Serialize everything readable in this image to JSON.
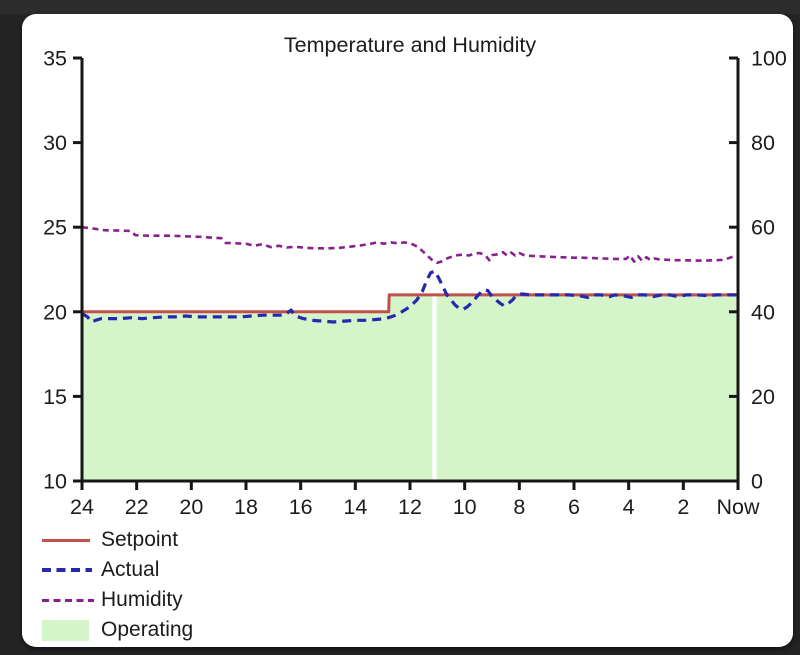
{
  "window": {
    "frame_color": "#232323",
    "card_color": "#ffffff",
    "text_color": "#1c1c1c",
    "axis_color": "#161616"
  },
  "chart_data": {
    "type": "line",
    "title": "Temperature and Humidity",
    "x_axis": {
      "unit": "hours ago",
      "direction": "oldest-left",
      "range": [
        24,
        0
      ],
      "tick_values": [
        24,
        22,
        20,
        18,
        16,
        14,
        12,
        10,
        8,
        6,
        4,
        2,
        0
      ],
      "tick_labels": [
        "24",
        "22",
        "20",
        "18",
        "16",
        "14",
        "12",
        "10",
        "8",
        "6",
        "4",
        "2",
        "Now"
      ]
    },
    "y_axis_left": {
      "measure": "temperature",
      "range": [
        10,
        35
      ],
      "ticks": [
        10,
        15,
        20,
        25,
        30,
        35
      ]
    },
    "y_axis_right": {
      "measure": "humidity",
      "range": [
        0,
        100
      ],
      "ticks": [
        0,
        20,
        40,
        60,
        80,
        100
      ]
    },
    "series": [
      {
        "name": "Setpoint",
        "axis": "left",
        "color": "#c0504a",
        "style": "solid",
        "width": 3,
        "points": [
          [
            24,
            20
          ],
          [
            12.78,
            20
          ],
          [
            12.76,
            21
          ],
          [
            0,
            21
          ]
        ]
      },
      {
        "name": "Actual",
        "axis": "left",
        "color": "#2828ae",
        "style": "dashed",
        "width": 3.2,
        "dash": "9 6",
        "points": [
          [
            24,
            19.9
          ],
          [
            23.8,
            19.7
          ],
          [
            23.65,
            19.4
          ],
          [
            23.5,
            19.5
          ],
          [
            23.3,
            19.6
          ],
          [
            23,
            19.6
          ],
          [
            22.6,
            19.6
          ],
          [
            22.2,
            19.65
          ],
          [
            21.8,
            19.6
          ],
          [
            21.4,
            19.65
          ],
          [
            21,
            19.7
          ],
          [
            20.6,
            19.7
          ],
          [
            20.2,
            19.75
          ],
          [
            19.8,
            19.7
          ],
          [
            19.4,
            19.7
          ],
          [
            19,
            19.7
          ],
          [
            18.6,
            19.7
          ],
          [
            18.2,
            19.7
          ],
          [
            17.8,
            19.75
          ],
          [
            17.4,
            19.8
          ],
          [
            17,
            19.8
          ],
          [
            16.6,
            19.8
          ],
          [
            16.35,
            20.1
          ],
          [
            16.2,
            19.75
          ],
          [
            15.9,
            19.6
          ],
          [
            15.6,
            19.5
          ],
          [
            15.2,
            19.45
          ],
          [
            14.8,
            19.4
          ],
          [
            14.4,
            19.45
          ],
          [
            14,
            19.5
          ],
          [
            13.6,
            19.5
          ],
          [
            13.2,
            19.55
          ],
          [
            12.9,
            19.6
          ],
          [
            12.6,
            19.75
          ],
          [
            12.3,
            20.0
          ],
          [
            12,
            20.3
          ],
          [
            11.75,
            20.7
          ],
          [
            11.55,
            21.2
          ],
          [
            11.4,
            21.8
          ],
          [
            11.25,
            22.3
          ],
          [
            11.1,
            22.4
          ],
          [
            10.95,
            22.0
          ],
          [
            10.8,
            21.5
          ],
          [
            10.65,
            21.0
          ],
          [
            10.5,
            20.7
          ],
          [
            10.35,
            20.4
          ],
          [
            10.2,
            20.2
          ],
          [
            10.05,
            20.15
          ],
          [
            9.9,
            20.3
          ],
          [
            9.7,
            20.6
          ],
          [
            9.5,
            21.0
          ],
          [
            9.3,
            21.3
          ],
          [
            9.15,
            21.25
          ],
          [
            9,
            20.9
          ],
          [
            8.85,
            20.7
          ],
          [
            8.7,
            20.5
          ],
          [
            8.55,
            20.35
          ],
          [
            8.4,
            20.5
          ],
          [
            8.25,
            20.7
          ],
          [
            8.1,
            21.0
          ],
          [
            7.9,
            21.05
          ],
          [
            7.6,
            21.0
          ],
          [
            7.3,
            21.0
          ],
          [
            7,
            21.0
          ],
          [
            6.6,
            21.0
          ],
          [
            6.2,
            21.0
          ],
          [
            5.8,
            20.95
          ],
          [
            5.5,
            20.85
          ],
          [
            5.3,
            21.0
          ],
          [
            5,
            21.0
          ],
          [
            4.7,
            20.9
          ],
          [
            4.5,
            21.0
          ],
          [
            4.2,
            20.95
          ],
          [
            3.9,
            20.85
          ],
          [
            3.7,
            21.0
          ],
          [
            3.4,
            21.0
          ],
          [
            3.1,
            20.9
          ],
          [
            2.8,
            21.0
          ],
          [
            2.5,
            21.0
          ],
          [
            2.2,
            20.9
          ],
          [
            1.9,
            21.0
          ],
          [
            1.5,
            21.0
          ],
          [
            1.1,
            20.95
          ],
          [
            0.8,
            21.0
          ],
          [
            0.4,
            21.0
          ],
          [
            0,
            21.0
          ]
        ]
      },
      {
        "name": "Humidity",
        "axis": "right",
        "color": "#87218d",
        "style": "dashed",
        "width": 2.6,
        "dash": "6 4.5",
        "points": [
          [
            24,
            60
          ],
          [
            23.6,
            59.7
          ],
          [
            23.2,
            59.3
          ],
          [
            22.6,
            59.2
          ],
          [
            22.2,
            59.1
          ],
          [
            22.05,
            58.1
          ],
          [
            21.6,
            58
          ],
          [
            21.2,
            58
          ],
          [
            20.8,
            58
          ],
          [
            20.4,
            57.9
          ],
          [
            20,
            57.8
          ],
          [
            19.6,
            57.7
          ],
          [
            19.2,
            57.5
          ],
          [
            18.9,
            57.4
          ],
          [
            18.75,
            56.3
          ],
          [
            18.4,
            56.2
          ],
          [
            18,
            56.1
          ],
          [
            17.7,
            55.6
          ],
          [
            17.4,
            56
          ],
          [
            17.1,
            55.3
          ],
          [
            16.8,
            55.6
          ],
          [
            16.5,
            55.2
          ],
          [
            16.2,
            55.4
          ],
          [
            15.8,
            55.1
          ],
          [
            15.4,
            55
          ],
          [
            15,
            55
          ],
          [
            14.6,
            55.1
          ],
          [
            14.2,
            55.4
          ],
          [
            13.8,
            55.7
          ],
          [
            13.5,
            56
          ],
          [
            13.2,
            56.4
          ],
          [
            12.95,
            56.1
          ],
          [
            12.7,
            56.4
          ],
          [
            12.45,
            56.2
          ],
          [
            12.2,
            56.4
          ],
          [
            11.95,
            56.1
          ],
          [
            11.7,
            55.3
          ],
          [
            11.45,
            53.8
          ],
          [
            11.2,
            52.3
          ],
          [
            11,
            51.6
          ],
          [
            10.85,
            51.9
          ],
          [
            10.65,
            52.6
          ],
          [
            10.45,
            53.1
          ],
          [
            10.25,
            53.4
          ],
          [
            10.05,
            53.5
          ],
          [
            9.85,
            53.3
          ],
          [
            9.65,
            53.7
          ],
          [
            9.45,
            53.9
          ],
          [
            9.25,
            53.4
          ],
          [
            9.1,
            52.2
          ],
          [
            9,
            53.4
          ],
          [
            8.8,
            53.6
          ],
          [
            8.6,
            54.1
          ],
          [
            8.45,
            53.3
          ],
          [
            8.3,
            54.0
          ],
          [
            8.15,
            53.3
          ],
          [
            8,
            53.9
          ],
          [
            7.8,
            53.3
          ],
          [
            7.5,
            53.2
          ],
          [
            7.2,
            53.1
          ],
          [
            6.9,
            53
          ],
          [
            6.5,
            52.9
          ],
          [
            6.1,
            52.8
          ],
          [
            5.7,
            52.8
          ],
          [
            5.3,
            52.7
          ],
          [
            4.9,
            52.6
          ],
          [
            4.5,
            52.5
          ],
          [
            4.1,
            52.5
          ],
          [
            3.95,
            53.3
          ],
          [
            3.8,
            51.9
          ],
          [
            3.65,
            53.1
          ],
          [
            3.5,
            52.0
          ],
          [
            3.35,
            52.9
          ],
          [
            3.2,
            52.2
          ],
          [
            3.05,
            52.6
          ],
          [
            2.9,
            52.4
          ],
          [
            2.6,
            52.3
          ],
          [
            2.3,
            52.2
          ],
          [
            2,
            52.2
          ],
          [
            1.6,
            52.1
          ],
          [
            1.2,
            52.1
          ],
          [
            0.8,
            52.2
          ],
          [
            0.5,
            52.3
          ],
          [
            0.25,
            52.9
          ],
          [
            0.1,
            53.3
          ],
          [
            0,
            53.5
          ]
        ]
      }
    ],
    "operating": {
      "name": "Operating",
      "color": "#d4f4ca",
      "top_follows": "Setpoint",
      "regions": [
        [
          24,
          11.18
        ],
        [
          11.02,
          0
        ]
      ]
    },
    "legend_position": "bottom-left",
    "grid": false
  }
}
